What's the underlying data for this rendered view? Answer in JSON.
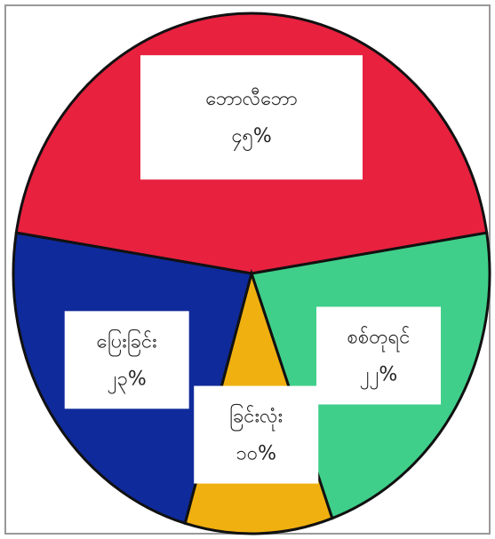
{
  "chart_data": {
    "type": "pie",
    "categories": [
      "ဘောလီဘော",
      "စစ်တုရင်",
      "ခြင်းလုံး",
      "ပြေးခြင်း"
    ],
    "values": [
      45,
      22,
      10,
      23
    ],
    "value_labels": [
      "၄၅%",
      "၂၂%",
      "၁၀%",
      "၂၃%"
    ],
    "colors": [
      "#e8213f",
      "#3fcf8a",
      "#f0b010",
      "#0f2a9a"
    ]
  }
}
